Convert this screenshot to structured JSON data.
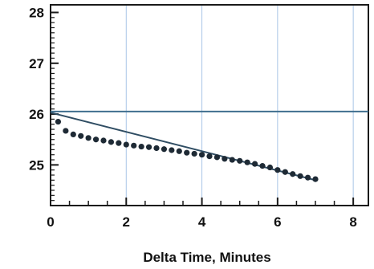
{
  "chart_data": {
    "type": "scatter",
    "title": "",
    "xlabel": "Delta Time, Minutes",
    "ylabel": "",
    "xlim": [
      0,
      8.4
    ],
    "ylim": [
      24.2,
      28.15
    ],
    "x_ticks": [
      0,
      2,
      4,
      6,
      8
    ],
    "x_tick_labels": [
      "0",
      "2",
      "4",
      "6",
      "8"
    ],
    "y_ticks": [
      25,
      26,
      27,
      28
    ],
    "y_tick_labels": [
      "25",
      "26",
      "27",
      "28"
    ],
    "grid": "vertical",
    "series": [
      {
        "kind": "points",
        "x": [
          0.2,
          0.4,
          0.6,
          0.8,
          1.0,
          1.2,
          1.4,
          1.6,
          1.8,
          2.0,
          2.2,
          2.4,
          2.6,
          2.8,
          3.0,
          3.2,
          3.4,
          3.6,
          3.8,
          4.0,
          4.2,
          4.4,
          4.6,
          4.8,
          5.0,
          5.2,
          5.4,
          5.6,
          5.8,
          6.0,
          6.2,
          6.4,
          6.6,
          6.8,
          7.0
        ],
        "y": [
          25.85,
          25.67,
          25.6,
          25.57,
          25.53,
          25.5,
          25.48,
          25.45,
          25.43,
          25.4,
          25.38,
          25.36,
          25.35,
          25.33,
          25.31,
          25.29,
          25.27,
          25.24,
          25.22,
          25.2,
          25.17,
          25.15,
          25.12,
          25.1,
          25.08,
          25.05,
          25.02,
          24.98,
          24.95,
          24.9,
          24.86,
          24.82,
          24.78,
          24.75,
          24.72
        ]
      },
      {
        "kind": "line",
        "x": [
          0,
          7
        ],
        "y": [
          26.03,
          24.7
        ]
      },
      {
        "kind": "hline",
        "y": 26.05
      }
    ],
    "colors": {
      "axis": "#1a1a1a",
      "grid": "#a9c5e6",
      "hline": "#3f6f8f",
      "trend": "#2f4d63",
      "points": "#1e2a35"
    }
  }
}
